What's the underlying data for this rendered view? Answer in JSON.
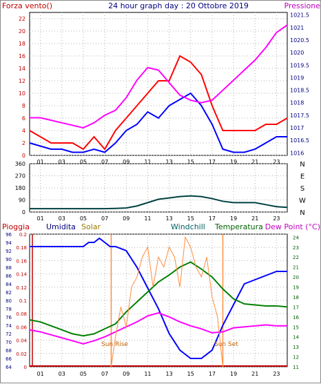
{
  "chart_data": [
    {
      "type": "line",
      "title": "24 hour graph day : 20 Ottobre 2019",
      "left_label": "Forza vento()",
      "right_label": "Pressione",
      "x_ticks": [
        "01",
        "03",
        "05",
        "07",
        "09",
        "11",
        "13",
        "15",
        "17",
        "19",
        "21",
        "23"
      ],
      "y_left_ticks": [
        "0",
        "2",
        "4",
        "6",
        "8",
        "10",
        "12",
        "14",
        "16",
        "18",
        "20",
        "22"
      ],
      "y_right_ticks": [
        "1016",
        "1016.5",
        "1017",
        "1017.5",
        "1018",
        "1018.5",
        "1019",
        "1019.5",
        "1020",
        "1020.5",
        "1021",
        "1021.5"
      ],
      "ylim_left": [
        0,
        23
      ],
      "ylim_right": [
        1015.9,
        1021.6
      ],
      "xlim": [
        0,
        24
      ],
      "series": [
        {
          "color": "#ff0000",
          "axis": "left",
          "x": [
            0,
            1,
            2,
            3,
            4,
            5,
            6,
            7,
            8,
            9,
            10,
            11,
            12,
            13,
            14,
            15,
            16,
            17,
            18,
            19,
            20,
            21,
            22,
            23,
            24
          ],
          "y": [
            4,
            3,
            2,
            2,
            2,
            1,
            3,
            1,
            4,
            6,
            8,
            10,
            12,
            12,
            16,
            15,
            13,
            8,
            4,
            4,
            4,
            4,
            5,
            5,
            6
          ]
        },
        {
          "color": "#0000ff",
          "axis": "left",
          "x": [
            0,
            1,
            2,
            3,
            4,
            5,
            6,
            7,
            8,
            9,
            10,
            11,
            12,
            13,
            14,
            15,
            16,
            17,
            18,
            19,
            20,
            21,
            22,
            23,
            24
          ],
          "y": [
            2,
            1.5,
            1,
            1,
            0.5,
            0.5,
            1,
            0.5,
            2,
            4,
            5,
            7,
            6,
            8,
            9,
            10,
            8,
            5,
            1,
            0.5,
            0.5,
            1,
            2,
            3,
            3
          ]
        },
        {
          "color": "#ff00ff",
          "axis": "right",
          "x": [
            0,
            1,
            2,
            3,
            4,
            5,
            6,
            7,
            8,
            9,
            10,
            11,
            12,
            13,
            14,
            15,
            16,
            17,
            18,
            19,
            20,
            21,
            22,
            23,
            24
          ],
          "y": [
            1017.4,
            1017.4,
            1017.3,
            1017.2,
            1017.1,
            1017.0,
            1017.2,
            1017.5,
            1017.7,
            1018.2,
            1018.9,
            1019.4,
            1019.3,
            1018.8,
            1018.3,
            1018.1,
            1018.0,
            1018.1,
            1018.5,
            1018.9,
            1019.3,
            1019.7,
            1020.2,
            1020.8,
            1021.1
          ]
        }
      ]
    },
    {
      "type": "line",
      "title": "",
      "x_ticks": [
        "01",
        "03",
        "05",
        "07",
        "09",
        "11",
        "13",
        "15",
        "17",
        "19",
        "21",
        "23"
      ],
      "y_left_ticks": [
        "0",
        "90",
        "180",
        "270",
        "360"
      ],
      "y_right_ticks": [
        "N",
        "W",
        "S",
        "E",
        "N"
      ],
      "ylim": [
        0,
        360
      ],
      "xlim": [
        0,
        24
      ],
      "series": [
        {
          "color": "#004040",
          "x": [
            0,
            1,
            2,
            3,
            4,
            5,
            6,
            7,
            8,
            9,
            10,
            11,
            12,
            13,
            14,
            15,
            16,
            17,
            18,
            19,
            20,
            21,
            22,
            23,
            24
          ],
          "y": [
            25,
            25,
            25,
            25,
            25,
            25,
            25,
            25,
            27,
            30,
            45,
            70,
            95,
            105,
            115,
            120,
            115,
            100,
            80,
            70,
            70,
            70,
            55,
            40,
            35
          ]
        }
      ]
    },
    {
      "type": "line",
      "title": "",
      "legend": [
        "Pioggia",
        "Umidita",
        "Solar",
        "Windchill",
        "Temperatura",
        "Dew Point (°C)"
      ],
      "sunrise_label": "Sun Rise",
      "sunset_label": "Sun Set",
      "x_ticks": [
        "01",
        "03",
        "05",
        "07",
        "09",
        "11",
        "13",
        "15",
        "17",
        "19",
        "21",
        "23"
      ],
      "y_rain_ticks": [
        "0",
        "0.02",
        "0.04",
        "0.06",
        "0.08",
        "0.1",
        "0.12",
        "0.14",
        "0.16",
        "0.18",
        "0.2"
      ],
      "y_hum_ticks": [
        "64",
        "66",
        "68",
        "70",
        "72",
        "74",
        "76",
        "78",
        "80",
        "82",
        "84",
        "86",
        "88",
        "90",
        "92",
        "94",
        "96"
      ],
      "y_temp_ticks": [
        "11",
        "12",
        "13",
        "14",
        "15",
        "16",
        "17",
        "18",
        "19",
        "20",
        "21",
        "22",
        "23",
        "24"
      ],
      "ylim_rain": [
        0,
        0.2
      ],
      "ylim_hum": [
        64,
        96
      ],
      "ylim_temp": [
        11,
        24.3
      ],
      "xlim": [
        0,
        24
      ],
      "series": [
        {
          "name": "Umidita",
          "color": "#0000ff",
          "axis": "hum",
          "x": [
            0,
            1,
            2,
            3,
            4,
            5,
            5.5,
            6,
            6.5,
            7,
            7.5,
            8,
            9,
            10,
            11,
            12,
            13,
            14,
            15,
            16,
            17,
            17.5,
            18,
            19,
            20,
            21,
            22,
            23,
            24
          ],
          "y": [
            93,
            93,
            93,
            93,
            93,
            93,
            94,
            94,
            95,
            94,
            93,
            93,
            92,
            88,
            83,
            78,
            72,
            68,
            66,
            66,
            68,
            71,
            74,
            79,
            84,
            85,
            86,
            87,
            87
          ]
        },
        {
          "name": "Temperatura",
          "color": "#008000",
          "axis": "temp",
          "x": [
            0,
            1,
            2,
            3,
            4,
            5,
            6,
            7,
            8,
            9,
            10,
            11,
            12,
            13,
            14,
            15,
            16,
            17,
            18,
            19,
            20,
            21,
            22,
            23,
            24
          ],
          "y": [
            15.7,
            15.5,
            15.1,
            14.7,
            14.3,
            14.1,
            14.3,
            14.8,
            15.3,
            16.5,
            17.5,
            18.5,
            19.5,
            20.2,
            21,
            21.5,
            20.8,
            20,
            18.8,
            17.8,
            17.3,
            17.2,
            17.1,
            17.1,
            17
          ]
        },
        {
          "name": "Dew Point (°C)",
          "color": "#ff00ff",
          "axis": "temp",
          "x": [
            0,
            1,
            2,
            3,
            4,
            5,
            6,
            7,
            8,
            9,
            10,
            11,
            12,
            13,
            14,
            15,
            16,
            17,
            18,
            19,
            20,
            21,
            22,
            23,
            24
          ],
          "y": [
            14.7,
            14.5,
            14.2,
            13.9,
            13.6,
            13.3,
            13.6,
            14.0,
            14.5,
            15.0,
            15.5,
            16.1,
            16.4,
            16.0,
            15.5,
            15.1,
            14.8,
            14.4,
            14.5,
            14.9,
            15.0,
            15.1,
            15.2,
            15.1,
            15.1
          ]
        },
        {
          "name": "Solar",
          "color": "#ff8c3c",
          "axis": "temp",
          "x": [
            7.6,
            8,
            8.5,
            9,
            9.5,
            10,
            10.5,
            11,
            11.5,
            12,
            12.5,
            13,
            13.5,
            14,
            14.5,
            15,
            15.5,
            16,
            16.5,
            17,
            17.5,
            18
          ],
          "y": [
            11,
            14,
            17,
            15,
            19,
            20,
            22,
            23,
            19,
            22,
            21,
            23,
            22,
            19,
            24,
            23,
            21,
            20,
            22,
            18,
            16,
            11
          ]
        }
      ]
    }
  ]
}
